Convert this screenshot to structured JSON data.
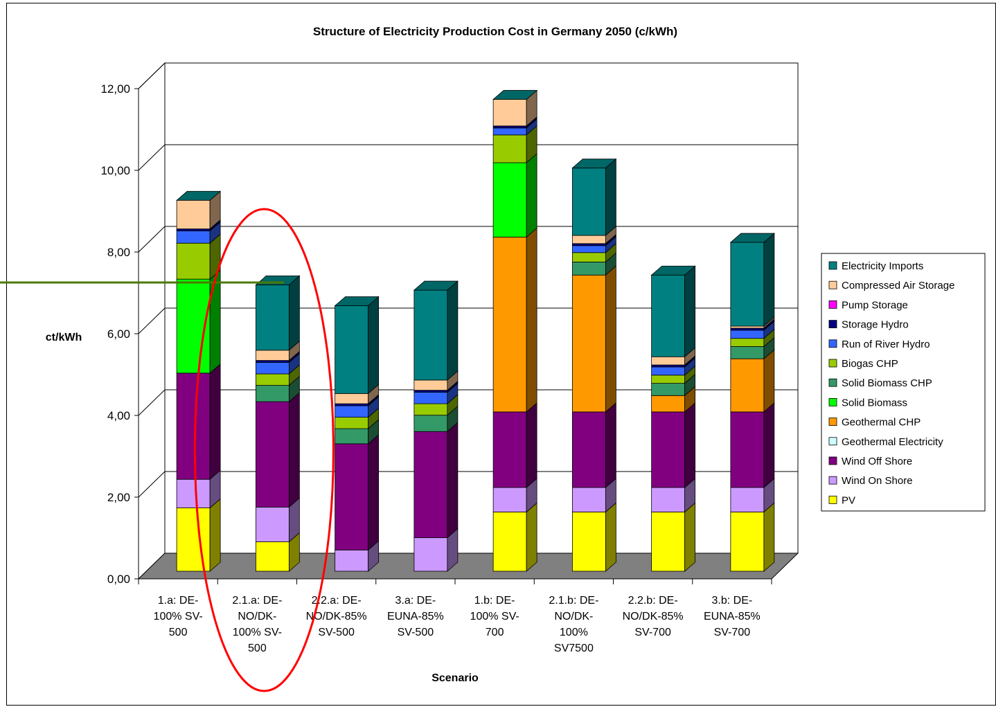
{
  "chart_data": {
    "type": "bar",
    "stacked": true,
    "three_d": true,
    "title": "Structure of Electricity Production Cost in Germany 2050 (c/kWh)",
    "xlabel": "Scenario",
    "ylabel": "ct/kWh",
    "ylim": [
      0,
      12
    ],
    "yticks": [
      "0,00",
      "2,00",
      "4,00",
      "6,00",
      "8,00",
      "10,00",
      "12,00"
    ],
    "ytick_values": [
      0,
      2,
      4,
      6,
      8,
      10,
      12
    ],
    "grid": true,
    "legend_position": "right",
    "categories": [
      [
        "1.a: DE-",
        "100% SV-",
        "500"
      ],
      [
        "2.1.a: DE-",
        "NO/DK-",
        "100% SV-",
        "500"
      ],
      [
        "2.2.a: DE-",
        "NO/DK-85%",
        "SV-500"
      ],
      [
        "3.a: DE-",
        "EUNA-85%",
        "SV-500"
      ],
      [
        "1.b: DE-",
        "100% SV-",
        "700"
      ],
      [
        "2.1.b: DE-",
        "NO/DK-",
        "100%",
        "SV7500"
      ],
      [
        "2.2.b: DE-",
        "NO/DK-85%",
        "SV-700"
      ],
      [
        "3.b: DE-",
        "EUNA-85%",
        "SV-700"
      ]
    ],
    "series": [
      {
        "name": "PV",
        "color": "#ffff00",
        "values": [
          1.55,
          0.72,
          0,
          0,
          1.45,
          1.45,
          1.45,
          1.45
        ]
      },
      {
        "name": "Wind On Shore",
        "color": "#cc99ff",
        "values": [
          0.7,
          0.85,
          0.52,
          0.82,
          0.6,
          0.6,
          0.6,
          0.6
        ]
      },
      {
        "name": "Wind Off Shore",
        "color": "#800080",
        "values": [
          2.6,
          2.58,
          2.6,
          2.6,
          1.85,
          1.85,
          1.85,
          1.85
        ]
      },
      {
        "name": "Geothermal Electricity",
        "color": "#ccffff",
        "values": [
          0,
          0,
          0,
          0,
          0,
          0,
          0,
          0
        ]
      },
      {
        "name": "Geothermal CHP",
        "color": "#ff9900",
        "values": [
          0,
          0,
          0,
          0,
          4.28,
          3.35,
          0.4,
          1.3
        ]
      },
      {
        "name": "Solid Biomass",
        "color": "#00ff00",
        "values": [
          2.3,
          0,
          0,
          0,
          1.82,
          0,
          0,
          0
        ]
      },
      {
        "name": "Solid Biomass CHP",
        "color": "#339966",
        "values": [
          0,
          0.4,
          0.37,
          0.4,
          0,
          0.32,
          0.3,
          0.3
        ]
      },
      {
        "name": "Biogas CHP",
        "color": "#99cc00",
        "values": [
          0.88,
          0.28,
          0.28,
          0.28,
          0.68,
          0.23,
          0.2,
          0.2
        ]
      },
      {
        "name": "Run of River Hydro",
        "color": "#3366ff",
        "values": [
          0.3,
          0.28,
          0.28,
          0.28,
          0.17,
          0.17,
          0.2,
          0.2
        ]
      },
      {
        "name": "Storage Hydro",
        "color": "#000080",
        "values": [
          0.05,
          0.05,
          0.05,
          0.05,
          0.05,
          0.05,
          0.05,
          0.05
        ]
      },
      {
        "name": "Pump Storage",
        "color": "#ff00ff",
        "values": [
          0,
          0,
          0,
          0,
          0,
          0,
          0,
          0
        ]
      },
      {
        "name": "Compressed Air Storage",
        "color": "#ffcc99",
        "values": [
          0.7,
          0.25,
          0.25,
          0.25,
          0.65,
          0.2,
          0.2,
          0.05
        ]
      },
      {
        "name": "Electricity Imports",
        "color": "#008080",
        "values": [
          0,
          1.6,
          2.15,
          2.2,
          0,
          1.65,
          2.0,
          2.05
        ]
      }
    ],
    "reference_line_value": 7.0,
    "reference_line_color": "#4a7a00",
    "highlight_category_index": 1,
    "highlight_color": "#ff0000"
  }
}
